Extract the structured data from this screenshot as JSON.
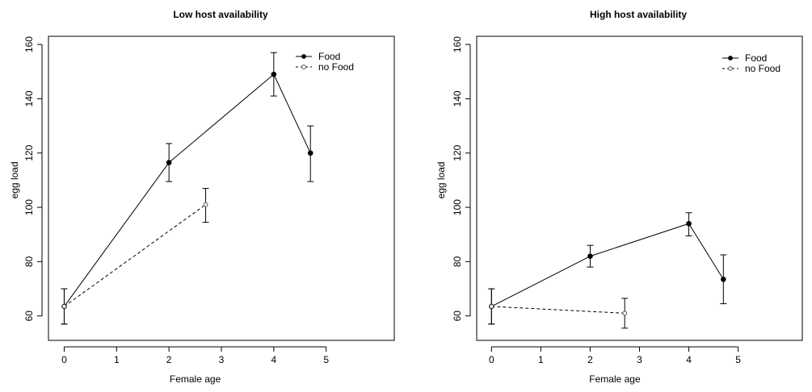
{
  "chart_data": [
    {
      "type": "line",
      "title": "Low host availability",
      "xlabel": "Female age",
      "ylabel": "egg load",
      "xlim": [
        -0.3,
        6.3
      ],
      "ylim": [
        51,
        163
      ],
      "xticks": [
        0,
        1,
        2,
        3,
        4,
        5
      ],
      "yticks": [
        60,
        80,
        100,
        120,
        140,
        160
      ],
      "legend_position": "top-right",
      "grid": false,
      "series": [
        {
          "name": "Food",
          "style": "solid",
          "marker": "filled-circle",
          "points": [
            {
              "x": 0,
              "y": 63.5,
              "lo": 57,
              "hi": 70
            },
            {
              "x": 2,
              "y": 116.5,
              "lo": 109.5,
              "hi": 123.5
            },
            {
              "x": 4,
              "y": 149,
              "lo": 141,
              "hi": 157
            },
            {
              "x": 4.7,
              "y": 120,
              "lo": 109.5,
              "hi": 130
            }
          ]
        },
        {
          "name": "no Food",
          "style": "dashed",
          "marker": "open-circle",
          "points": [
            {
              "x": 0,
              "y": 63.5,
              "lo": 57,
              "hi": 70
            },
            {
              "x": 2.7,
              "y": 101,
              "lo": 94.5,
              "hi": 107
            }
          ]
        }
      ]
    },
    {
      "type": "line",
      "title": "High host availability",
      "xlabel": "Female age",
      "ylabel": "egg load",
      "xlim": [
        -0.3,
        6.3
      ],
      "ylim": [
        51,
        163
      ],
      "xticks": [
        0,
        1,
        2,
        3,
        4,
        5
      ],
      "yticks": [
        60,
        80,
        100,
        120,
        140,
        160
      ],
      "legend_position": "top-right",
      "grid": false,
      "series": [
        {
          "name": "Food",
          "style": "solid",
          "marker": "filled-circle",
          "points": [
            {
              "x": 0,
              "y": 63.5,
              "lo": 57,
              "hi": 70
            },
            {
              "x": 2,
              "y": 82,
              "lo": 78,
              "hi": 86
            },
            {
              "x": 4,
              "y": 94,
              "lo": 89.5,
              "hi": 98
            },
            {
              "x": 4.7,
              "y": 73.5,
              "lo": 64.5,
              "hi": 82.5
            }
          ]
        },
        {
          "name": "no Food",
          "style": "dashed",
          "marker": "open-circle",
          "points": [
            {
              "x": 0,
              "y": 63.5,
              "lo": 57,
              "hi": 70
            },
            {
              "x": 2.7,
              "y": 61,
              "lo": 55.5,
              "hi": 66.5
            }
          ]
        }
      ]
    }
  ]
}
